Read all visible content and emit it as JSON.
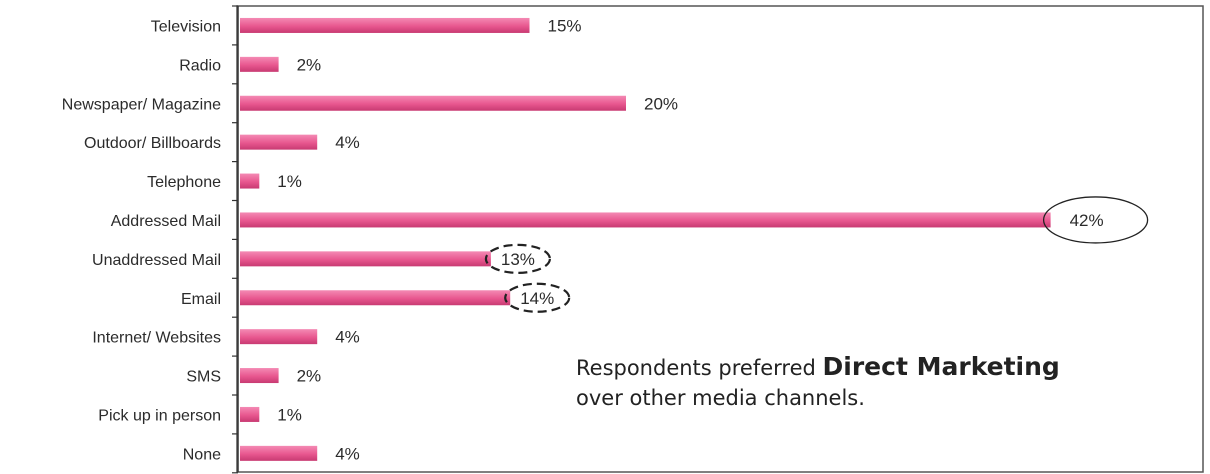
{
  "chart_data": {
    "type": "bar",
    "orientation": "horizontal",
    "categories": [
      "Television",
      "Radio",
      "Newspaper/ Magazine",
      "Outdoor/ Billboards",
      "Telephone",
      "Addressed Mail",
      "Unaddressed Mail",
      "Email",
      "Internet/ Websites",
      "SMS",
      "Pick up in person",
      "None"
    ],
    "values": [
      15,
      2,
      20,
      4,
      1,
      42,
      13,
      14,
      4,
      2,
      1,
      4
    ],
    "value_labels": [
      "15%",
      "2%",
      "20%",
      "4%",
      "1%",
      "42%",
      "13%",
      "14%",
      "4%",
      "2%",
      "1%",
      "4%"
    ],
    "unit": "%",
    "xlim": [
      0,
      50
    ],
    "grid": false,
    "bar_color": "#e8578f",
    "highlight": {
      "solid_circle": [
        "Addressed Mail"
      ],
      "dashed_circle": [
        "Unaddressed Mail",
        "Email"
      ]
    }
  },
  "annotation": {
    "prefix": "Respondents preferred",
    "bold": "Direct Marketing",
    "line2": "over other media channels."
  }
}
